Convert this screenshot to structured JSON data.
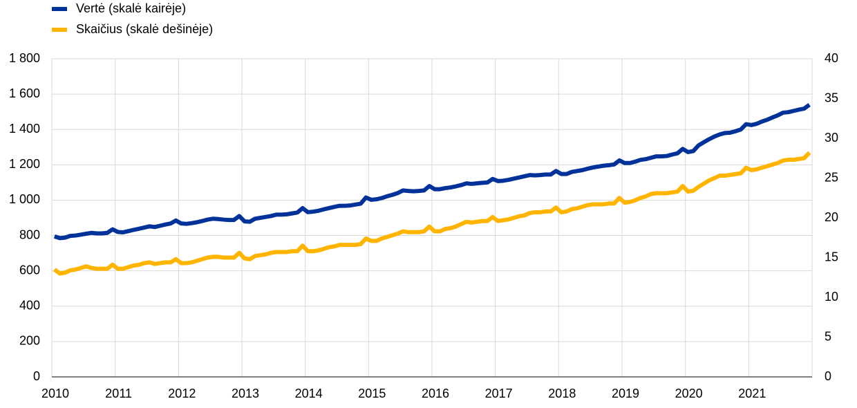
{
  "chart_data": {
    "type": "line",
    "categories": [
      "2010",
      null,
      null,
      null,
      null,
      null,
      null,
      null,
      null,
      null,
      null,
      null,
      "2011",
      null,
      null,
      null,
      null,
      null,
      null,
      null,
      null,
      null,
      null,
      null,
      "2012",
      null,
      null,
      null,
      null,
      null,
      null,
      null,
      null,
      null,
      null,
      null,
      "2013",
      null,
      null,
      null,
      null,
      null,
      null,
      null,
      null,
      null,
      null,
      null,
      "2014",
      null,
      null,
      null,
      null,
      null,
      null,
      null,
      null,
      null,
      null,
      null,
      "2015",
      null,
      null,
      null,
      null,
      null,
      null,
      null,
      null,
      null,
      null,
      null,
      "2016",
      null,
      null,
      null,
      null,
      null,
      null,
      null,
      null,
      null,
      null,
      null,
      "2017",
      null,
      null,
      null,
      null,
      null,
      null,
      null,
      null,
      null,
      null,
      null,
      "2018",
      null,
      null,
      null,
      null,
      null,
      null,
      null,
      null,
      null,
      null,
      null,
      "2019",
      null,
      null,
      null,
      null,
      null,
      null,
      null,
      null,
      null,
      null,
      null,
      "2020",
      null,
      null,
      null,
      null,
      null,
      null,
      null,
      null,
      null,
      null,
      null,
      "2021",
      null,
      null,
      null,
      null,
      null,
      null,
      null,
      null,
      null,
      null,
      null
    ],
    "series": [
      {
        "name": "Vertė (skalė kairėje)",
        "color": "#003299",
        "values": [
          795,
          785,
          788,
          798,
          800,
          805,
          810,
          815,
          812,
          812,
          815,
          835,
          820,
          818,
          825,
          832,
          838,
          845,
          852,
          848,
          855,
          862,
          868,
          885,
          868,
          866,
          870,
          875,
          882,
          890,
          895,
          893,
          890,
          888,
          888,
          910,
          880,
          878,
          895,
          900,
          905,
          910,
          918,
          918,
          920,
          925,
          930,
          955,
          932,
          935,
          940,
          948,
          955,
          962,
          968,
          968,
          970,
          975,
          980,
          1015,
          1002,
          1005,
          1012,
          1022,
          1030,
          1040,
          1055,
          1052,
          1050,
          1052,
          1055,
          1080,
          1062,
          1062,
          1068,
          1072,
          1078,
          1085,
          1095,
          1092,
          1095,
          1098,
          1100,
          1120,
          1108,
          1110,
          1115,
          1122,
          1128,
          1135,
          1142,
          1140,
          1142,
          1145,
          1145,
          1165,
          1148,
          1148,
          1160,
          1165,
          1170,
          1178,
          1185,
          1190,
          1195,
          1198,
          1202,
          1225,
          1210,
          1210,
          1218,
          1228,
          1232,
          1240,
          1248,
          1248,
          1250,
          1258,
          1265,
          1290,
          1272,
          1278,
          1310,
          1328,
          1345,
          1360,
          1372,
          1380,
          1382,
          1390,
          1400,
          1430,
          1425,
          1432,
          1445,
          1455,
          1468,
          1480,
          1495,
          1498,
          1505,
          1512,
          1518,
          1540
        ]
      },
      {
        "name": "Skaičius (skalė dešinėje)",
        "color": "#ffb400",
        "axis": "y2",
        "values": [
          13.5,
          13.0,
          13.1,
          13.4,
          13.5,
          13.7,
          13.9,
          13.7,
          13.6,
          13.6,
          13.6,
          14.1,
          13.6,
          13.6,
          13.8,
          14.0,
          14.1,
          14.3,
          14.4,
          14.2,
          14.3,
          14.4,
          14.4,
          14.8,
          14.3,
          14.3,
          14.4,
          14.6,
          14.8,
          15.0,
          15.1,
          15.1,
          15.0,
          15.0,
          15.0,
          15.6,
          14.9,
          14.8,
          15.2,
          15.3,
          15.4,
          15.6,
          15.7,
          15.7,
          15.7,
          15.8,
          15.8,
          16.5,
          15.8,
          15.8,
          15.9,
          16.1,
          16.3,
          16.4,
          16.6,
          16.6,
          16.6,
          16.6,
          16.7,
          17.4,
          17.1,
          17.1,
          17.4,
          17.6,
          17.8,
          18.0,
          18.3,
          18.2,
          18.2,
          18.2,
          18.3,
          18.9,
          18.3,
          18.3,
          18.6,
          18.7,
          18.9,
          19.2,
          19.5,
          19.4,
          19.5,
          19.6,
          19.6,
          20.1,
          19.6,
          19.7,
          19.8,
          20.0,
          20.2,
          20.3,
          20.6,
          20.7,
          20.7,
          20.8,
          20.8,
          21.3,
          20.7,
          20.8,
          21.1,
          21.2,
          21.4,
          21.6,
          21.7,
          21.7,
          21.7,
          21.8,
          21.8,
          22.5,
          21.9,
          22.0,
          22.2,
          22.5,
          22.7,
          23.0,
          23.1,
          23.1,
          23.1,
          23.2,
          23.3,
          24.0,
          23.3,
          23.4,
          23.9,
          24.3,
          24.7,
          25.0,
          25.3,
          25.3,
          25.4,
          25.5,
          25.6,
          26.3,
          26.0,
          26.1,
          26.3,
          26.5,
          26.7,
          26.9,
          27.2,
          27.3,
          27.3,
          27.4,
          27.5,
          28.2
        ]
      }
    ],
    "ylim": [
      0,
      1800
    ],
    "yticks": [
      0,
      200,
      400,
      600,
      800,
      {
        "value": 1000,
        "label": "1 000"
      },
      {
        "value": 1200,
        "label": "1 200"
      },
      {
        "value": 1400,
        "label": "1 400"
      },
      {
        "value": 1600,
        "label": "1 600"
      },
      {
        "value": 1800,
        "label": "1 800"
      }
    ],
    "y2lim": [
      0,
      40
    ],
    "y2ticks": [
      0,
      5,
      10,
      15,
      20,
      25,
      30,
      35,
      40
    ],
    "grid": true
  }
}
